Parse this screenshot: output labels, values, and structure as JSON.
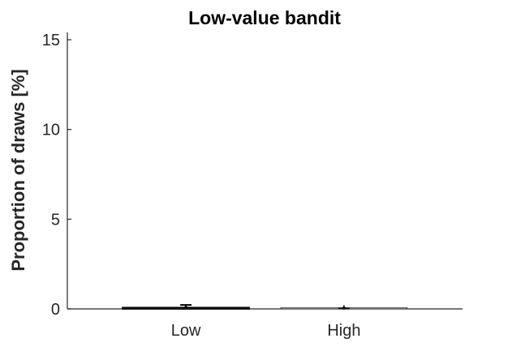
{
  "chart_data": {
    "type": "bar",
    "title": "Low-value bandit",
    "xlabel": "",
    "ylabel": "Proportion of draws [%]",
    "categories": [
      "Low",
      "High"
    ],
    "values": [
      0.02,
      0.0
    ],
    "errors": [
      0.2,
      0.02
    ],
    "ylim": [
      0,
      15
    ],
    "yticks": [
      0,
      5,
      10,
      15
    ],
    "grid": false,
    "colors": {
      "bar_edge": "#000000",
      "error_bar": "#000000",
      "axis": "#262626",
      "text": "#262626"
    }
  }
}
